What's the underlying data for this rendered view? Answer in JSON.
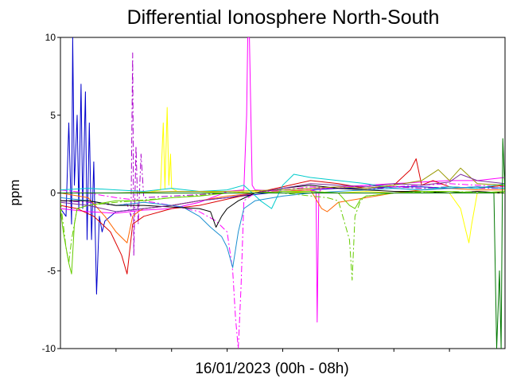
{
  "chart_data": {
    "type": "line",
    "title": "Differential Ionosphere North-South",
    "xlabel": "16/01/2023 (00h - 08h)",
    "ylabel": "ppm",
    "ylim": [
      -10,
      10
    ],
    "xlim": [
      0,
      8
    ],
    "yticks": [
      "10",
      "5",
      "0",
      "-5",
      "-10"
    ],
    "ytick_values": [
      10,
      5,
      0,
      -5,
      -10
    ],
    "xtick_values": [
      1,
      2,
      3,
      4,
      5,
      6,
      7
    ],
    "grid": false,
    "legend": "none",
    "series": [
      {
        "color": "#0000cc",
        "dash": "",
        "x": [
          0.0,
          0.1,
          0.15,
          0.2,
          0.22,
          0.25,
          0.3,
          0.33,
          0.37,
          0.4,
          0.45,
          0.48,
          0.52,
          0.56,
          0.6,
          0.65,
          0.7,
          0.75,
          0.8,
          1.0,
          1.5,
          2.0,
          2.5,
          3.0,
          3.5,
          4.0,
          4.5,
          5.0,
          5.5,
          6.0,
          6.5,
          7.0,
          7.5,
          8.0
        ],
        "y": [
          -1.0,
          -1.5,
          4.5,
          -2,
          10,
          0.5,
          5,
          -1,
          7,
          -1,
          6.5,
          -3,
          4.5,
          -3,
          2,
          -6.5,
          -1.5,
          -2.5,
          -1.8,
          -1.2,
          -1.0,
          -0.8,
          -0.5,
          -0.3,
          -0.1,
          0.1,
          0.2,
          0.3,
          0.3,
          0.4,
          0.4,
          0.3,
          0.4,
          0.3
        ]
      },
      {
        "color": "#aa00cc",
        "dash": "8,3,2,3",
        "x": [
          0.0,
          0.5,
          1.0,
          1.2,
          1.27,
          1.3,
          1.32,
          1.36,
          1.4,
          1.45,
          1.5,
          2.0,
          2.5,
          3.0,
          3.5,
          4.0,
          4.5,
          5.0,
          5.5,
          6.0,
          6.5,
          7.0,
          7.5,
          8.0
        ],
        "y": [
          -0.5,
          -0.6,
          -0.8,
          -0.7,
          -1.5,
          9,
          -4,
          3,
          -2,
          2.5,
          -0.3,
          -0.2,
          -0.1,
          0.0,
          0.1,
          0.2,
          0.3,
          0.3,
          0.2,
          0.4,
          0.3,
          0.4,
          0.3,
          0.3
        ]
      },
      {
        "color": "#ffff00",
        "dash": "",
        "x": [
          0.0,
          0.5,
          1.0,
          1.5,
          1.8,
          1.85,
          1.88,
          1.92,
          1.95,
          1.98,
          2.0,
          2.05,
          2.1,
          2.5,
          3.0,
          3.5,
          4.0,
          4.5,
          5.0,
          5.5,
          6.0,
          6.5,
          7.0,
          7.2,
          7.3,
          7.35,
          7.4,
          7.5,
          8.0
        ],
        "y": [
          0.0,
          0.0,
          0.0,
          0.0,
          0.2,
          4.5,
          0.3,
          5.5,
          0.5,
          2.5,
          0.3,
          0.2,
          0.1,
          0.1,
          0.0,
          0.1,
          0.0,
          0.1,
          0.0,
          0.1,
          0.0,
          0.1,
          0.0,
          -1.0,
          -2.5,
          -3.2,
          -2,
          0.0,
          0.1
        ]
      },
      {
        "color": "#ff00ff",
        "dash": "",
        "x": [
          0.0,
          0.5,
          1.0,
          1.5,
          2.0,
          2.5,
          2.8,
          3.0,
          3.3,
          3.35,
          3.37,
          3.4,
          3.45,
          3.5,
          4.0,
          4.5,
          4.6,
          4.62,
          4.65,
          4.7,
          5.0,
          5.5,
          6.0,
          6.5,
          7.0,
          7.5,
          8.0
        ],
        "y": [
          -1.0,
          -1.2,
          -1.3,
          -1.1,
          -1.0,
          -0.6,
          -0.2,
          0.1,
          0.2,
          5,
          10,
          10,
          0.5,
          0.2,
          0.1,
          0.2,
          0.1,
          -8.3,
          0.0,
          0.3,
          0.4,
          0.5,
          0.6,
          0.7,
          0.8,
          0.8,
          1.0
        ]
      },
      {
        "color": "#ff00ff",
        "dash": "8,3,2,3",
        "x": [
          0.0,
          0.5,
          1.0,
          1.5,
          2.0,
          2.5,
          2.8,
          3.0,
          3.1,
          3.15,
          3.2,
          3.25,
          3.3,
          3.5,
          4.0,
          4.5,
          5.0,
          5.5,
          6.0,
          6.5,
          7.0,
          7.5,
          8.0
        ],
        "y": [
          0.2,
          0.0,
          -0.3,
          -0.5,
          -0.8,
          -1.2,
          -1.8,
          -2.5,
          -5,
          -8,
          -10,
          -6,
          -0.5,
          0.0,
          0.2,
          0.4,
          0.3,
          0.5,
          0.4,
          0.5,
          0.6,
          0.5,
          0.4
        ]
      },
      {
        "color": "#ff6600",
        "dash": "",
        "x": [
          0.0,
          0.5,
          0.8,
          1.0,
          1.2,
          1.3,
          1.4,
          1.5,
          2.0,
          2.5,
          3.0,
          3.5,
          4.0,
          4.5,
          4.7,
          4.8,
          5.0,
          5.5,
          6.0,
          6.5,
          7.0,
          7.5,
          8.0
        ],
        "y": [
          0.0,
          -0.3,
          -1.5,
          -2.5,
          -3.2,
          -1.5,
          -1.2,
          -1.0,
          -0.8,
          -0.5,
          -0.2,
          0.0,
          0.1,
          0.2,
          -1.0,
          -1.2,
          -0.6,
          -0.3,
          0.0,
          0.2,
          0.3,
          0.2,
          0.2
        ]
      },
      {
        "color": "#dd0000",
        "dash": "",
        "x": [
          0.0,
          0.3,
          0.6,
          0.9,
          1.1,
          1.2,
          1.3,
          1.5,
          1.8,
          2.0,
          2.5,
          3.0,
          3.5,
          4.0,
          4.5,
          5.0,
          5.5,
          6.0,
          6.3,
          6.4,
          6.5,
          6.7,
          7.0,
          7.5,
          8.0
        ],
        "y": [
          -0.8,
          -1.0,
          -1.5,
          -2.5,
          -4,
          -5.2,
          -2,
          -1.5,
          -1.2,
          -1.0,
          -0.8,
          -0.4,
          0.0,
          0.4,
          0.8,
          0.6,
          0.3,
          0.5,
          1.5,
          2.2,
          0.5,
          0.8,
          0.4,
          0.3,
          0.5
        ]
      },
      {
        "color": "#00cccc",
        "dash": "",
        "x": [
          0.0,
          0.5,
          1.0,
          1.5,
          2.0,
          2.5,
          3.0,
          3.3,
          3.6,
          3.8,
          4.0,
          4.2,
          4.5,
          5.0,
          5.5,
          6.0,
          6.5,
          7.0,
          7.5,
          8.0
        ],
        "y": [
          0.2,
          0.3,
          0.2,
          0.1,
          0.3,
          0.1,
          0.2,
          0.5,
          -0.5,
          -1.0,
          0.5,
          1.2,
          1.0,
          0.8,
          0.6,
          0.3,
          0.2,
          0.4,
          0.3,
          0.6
        ]
      },
      {
        "color": "#1a8fd1",
        "dash": "",
        "x": [
          0.0,
          0.5,
          1.0,
          1.5,
          2.0,
          2.2,
          2.5,
          2.7,
          2.9,
          3.0,
          3.1,
          3.2,
          3.3,
          3.5,
          4.0,
          4.5,
          5.0,
          5.5,
          6.0,
          6.5,
          7.0,
          7.5,
          8.0
        ],
        "y": [
          -0.3,
          -0.5,
          -0.8,
          -0.6,
          -0.8,
          -0.9,
          -1.5,
          -2.2,
          -2.8,
          -3.5,
          -4.8,
          -2.5,
          -1.0,
          -0.5,
          -0.2,
          0.0,
          0.1,
          0.2,
          0.3,
          0.2,
          0.3,
          0.4,
          0.3
        ]
      },
      {
        "color": "#000000",
        "dash": "",
        "x": [
          0.0,
          0.5,
          1.0,
          1.5,
          2.0,
          2.5,
          2.7,
          2.8,
          2.9,
          3.0,
          3.2,
          3.5,
          4.0,
          4.5,
          5.0,
          5.5,
          6.0,
          6.5,
          7.0,
          7.5,
          8.0
        ],
        "y": [
          -0.5,
          -0.5,
          -0.8,
          -0.8,
          -0.9,
          -1.0,
          -1.2,
          -2.2,
          -1.5,
          -1.0,
          -0.5,
          0.0,
          0.3,
          0.5,
          0.3,
          0.2,
          0.1,
          0.1,
          0.0,
          0.1,
          0.0
        ]
      },
      {
        "color": "#66cc00",
        "dash": "",
        "x": [
          0.0,
          0.05,
          0.1,
          0.15,
          0.2,
          0.25,
          0.3,
          0.5,
          1.0,
          1.5,
          2.0,
          2.5,
          3.0,
          3.5,
          4.0,
          4.5,
          5.0,
          5.2,
          5.3,
          5.4,
          5.5,
          6.0,
          6.5,
          7.0,
          7.5,
          8.0
        ],
        "y": [
          -1.0,
          -2.5,
          -3.5,
          -4.5,
          -5.2,
          -2.0,
          -1.0,
          -0.8,
          -0.5,
          -0.5,
          -0.3,
          -0.2,
          0.0,
          0.0,
          0.1,
          0.1,
          0.0,
          -0.8,
          -1.0,
          -0.4,
          -0.2,
          0.0,
          0.1,
          0.1,
          0.0,
          0.1
        ]
      },
      {
        "color": "#66cc00",
        "dash": "8,3,2,3",
        "x": [
          0.0,
          0.05,
          0.1,
          0.15,
          0.2,
          0.3,
          0.5,
          1.0,
          2.0,
          3.0,
          4.0,
          4.8,
          5.0,
          5.2,
          5.25,
          5.3,
          5.4,
          5.5,
          6.0,
          7.0,
          8.0
        ],
        "y": [
          -0.5,
          -2,
          -3.5,
          -4.5,
          -3,
          -1.0,
          -0.8,
          -0.6,
          -0.3,
          0.0,
          0.0,
          -0.3,
          -0.5,
          -3,
          -5.6,
          -1.5,
          -0.5,
          -0.2,
          0.0,
          0.1,
          0.0
        ]
      },
      {
        "color": "#999900",
        "dash": "",
        "x": [
          0.0,
          1.0,
          2.0,
          3.0,
          4.0,
          4.5,
          5.0,
          5.5,
          6.0,
          6.5,
          6.8,
          7.0,
          7.2,
          7.5,
          8.0
        ],
        "y": [
          0.0,
          0.0,
          0.1,
          0.1,
          0.2,
          0.3,
          0.4,
          0.3,
          0.5,
          0.8,
          1.5,
          0.8,
          1.6,
          0.6,
          0.5
        ]
      },
      {
        "color": "#7b2e9c",
        "dash": "",
        "x": [
          0.0,
          0.5,
          1.0,
          1.5,
          2.0,
          2.5,
          3.0,
          3.5,
          4.0,
          4.5,
          5.0,
          5.5,
          6.0,
          6.5,
          7.0,
          7.2,
          7.5,
          8.0
        ],
        "y": [
          -0.6,
          -0.8,
          -1.2,
          -1.0,
          -0.8,
          -0.5,
          -0.3,
          0.0,
          0.3,
          0.6,
          0.5,
          0.4,
          0.6,
          0.5,
          0.7,
          1.2,
          0.8,
          0.6
        ]
      },
      {
        "color": "#007700",
        "dash": "",
        "x": [
          0.0,
          1.0,
          2.0,
          3.0,
          4.0,
          5.0,
          6.0,
          7.0,
          7.8,
          7.85,
          7.9,
          7.93,
          7.96,
          8.0
        ],
        "y": [
          0.0,
          0.0,
          0.0,
          0.0,
          0.0,
          0.0,
          0.0,
          0.0,
          0.0,
          -10,
          -5,
          -10,
          3.5,
          0.0
        ]
      }
    ]
  }
}
